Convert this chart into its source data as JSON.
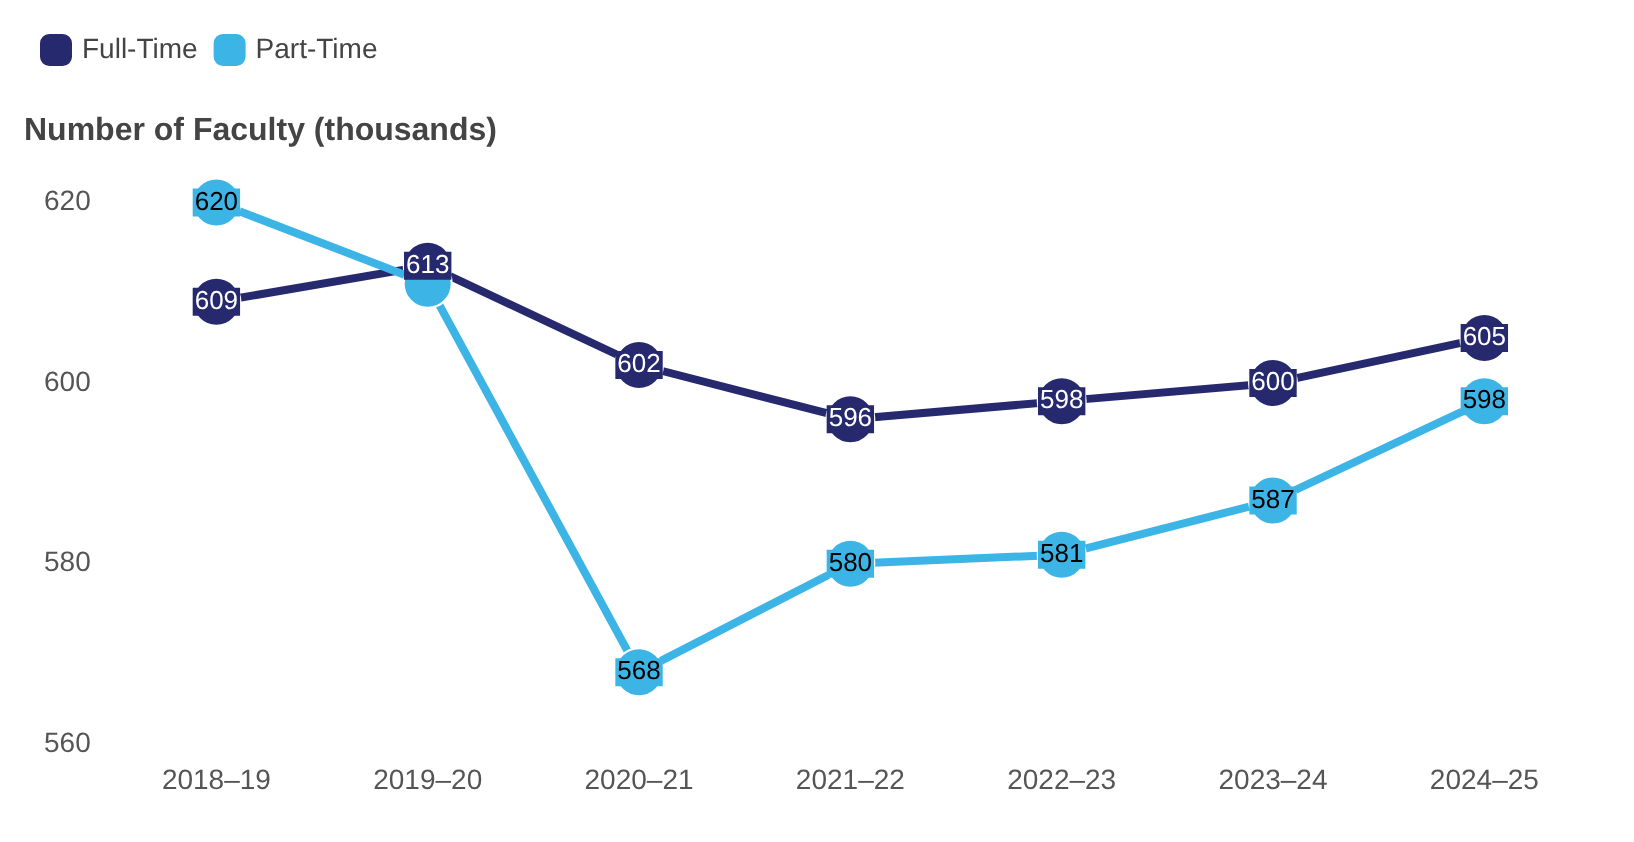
{
  "chart_data": {
    "type": "line",
    "title": "Number of Faculty (thousands)",
    "categories": [
      "2018–19",
      "2019–20",
      "2020–21",
      "2021–22",
      "2022–23",
      "2023–24",
      "2024–25"
    ],
    "series": [
      {
        "name": "Full-Time",
        "color": "#26296e",
        "values": [
          609,
          613,
          602,
          596,
          598,
          600,
          605
        ],
        "value_labels": [
          "609",
          "613",
          "602",
          "596",
          "598",
          "600",
          "605"
        ]
      },
      {
        "name": "Part-Time",
        "color": "#3db4e6",
        "values": [
          620,
          611,
          568,
          580,
          581,
          587,
          598
        ],
        "value_labels": [
          "620",
          null,
          "568",
          "580",
          "581",
          "587",
          "598"
        ]
      }
    ],
    "ylim": [
      560,
      620
    ],
    "yticks": [
      560,
      580,
      600,
      620
    ],
    "grid": false,
    "legend": "top left",
    "marker": "circle",
    "line_style": "solid"
  }
}
